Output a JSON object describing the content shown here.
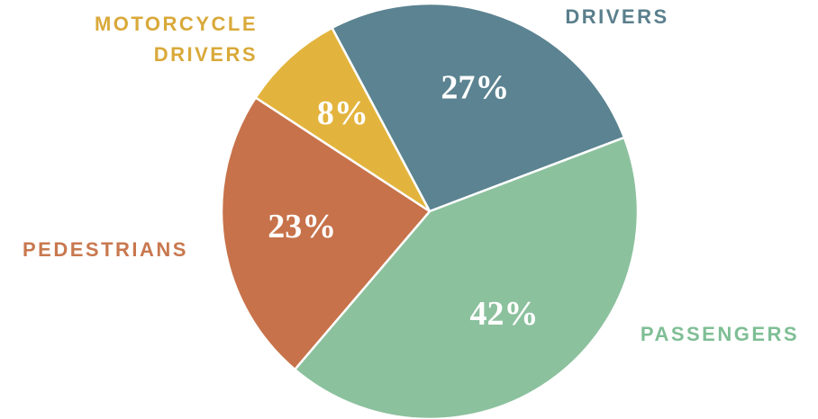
{
  "chart_data": {
    "type": "pie",
    "categories": [
      "DRIVERS",
      "PASSENGERS",
      "PEDESTRIANS",
      "MOTORCYCLE DRIVERS"
    ],
    "values": [
      27,
      42,
      23,
      8
    ],
    "value_labels": [
      "27%",
      "42%",
      "23%",
      "8%"
    ],
    "colors": [
      "#5b8391",
      "#8cc19e",
      "#c7724a",
      "#e3b43d"
    ],
    "label_colors": [
      "#5a7f8c",
      "#7fbe95",
      "#c8784f",
      "#d9a93a"
    ]
  }
}
